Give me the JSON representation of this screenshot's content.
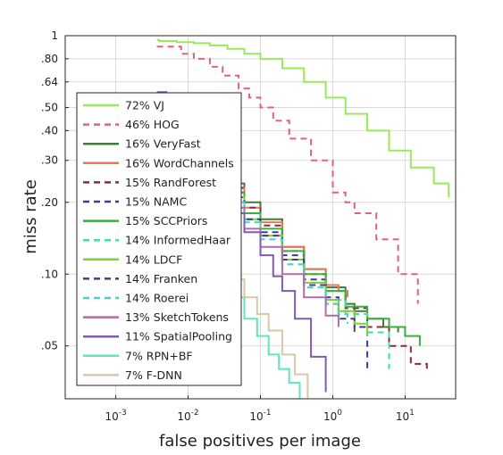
{
  "chart_data": {
    "type": "line",
    "xlabel": "false positives per image",
    "ylabel": "miss rate",
    "x_scale": "log",
    "y_scale": "log",
    "xlim": [
      0.0002,
      50
    ],
    "ylim": [
      0.03,
      1
    ],
    "x_ticks": [
      {
        "value": 0.001,
        "base": "10",
        "exp": "-3"
      },
      {
        "value": 0.01,
        "base": "10",
        "exp": "-2"
      },
      {
        "value": 0.1,
        "base": "10",
        "exp": "-1"
      },
      {
        "value": 1,
        "base": "10",
        "exp": "0"
      },
      {
        "value": 10,
        "base": "10",
        "exp": "1"
      }
    ],
    "y_ticks": [
      {
        "value": 1,
        "label": "1"
      },
      {
        "value": 0.8,
        "label": ".80"
      },
      {
        "value": 0.64,
        "label": ".64"
      },
      {
        "value": 0.5,
        "label": ".50"
      },
      {
        "value": 0.4,
        "label": ".40"
      },
      {
        "value": 0.3,
        "label": ".30"
      },
      {
        "value": 0.2,
        "label": ".20"
      },
      {
        "value": 0.1,
        "label": ".10"
      },
      {
        "value": 0.05,
        "label": ".05"
      }
    ],
    "grid": true,
    "legend_position": "left",
    "series": [
      {
        "name": "72% VJ",
        "color": "#9be95a",
        "dash": "solid",
        "x": [
          0.0037,
          0.004,
          0.007,
          0.012,
          0.02,
          0.035,
          0.06,
          0.1,
          0.2,
          0.4,
          0.8,
          1.5,
          3,
          6,
          12,
          25,
          40
        ],
        "y": [
          0.96,
          0.95,
          0.94,
          0.93,
          0.91,
          0.88,
          0.84,
          0.8,
          0.73,
          0.64,
          0.55,
          0.47,
          0.4,
          0.33,
          0.28,
          0.24,
          0.21
        ]
      },
      {
        "name": "46% HOG",
        "color": "#e06475",
        "dash": "dash",
        "x": [
          0.0037,
          0.005,
          0.008,
          0.012,
          0.02,
          0.03,
          0.05,
          0.07,
          0.1,
          0.15,
          0.25,
          0.5,
          1,
          1.5,
          2,
          4,
          8,
          15
        ],
        "y": [
          0.9,
          0.9,
          0.84,
          0.8,
          0.74,
          0.68,
          0.6,
          0.55,
          0.5,
          0.44,
          0.37,
          0.3,
          0.22,
          0.2,
          0.18,
          0.14,
          0.1,
          0.075
        ]
      },
      {
        "name": "16% VeryFast",
        "color": "#3f7a3f",
        "dash": "solid",
        "x": [
          0.0037,
          0.01,
          0.03,
          0.06,
          0.1,
          0.2,
          0.4,
          0.8,
          1.5,
          2,
          3,
          5,
          8
        ],
        "y": [
          0.5,
          0.33,
          0.24,
          0.2,
          0.17,
          0.13,
          0.105,
          0.088,
          0.075,
          0.07,
          0.065,
          0.06,
          0.057
        ]
      },
      {
        "name": "16% WordChannels",
        "color": "#e6795a",
        "dash": "solid",
        "x": [
          0.0037,
          0.01,
          0.03,
          0.06,
          0.1,
          0.2,
          0.4,
          0.8,
          1.2,
          1.6
        ],
        "y": [
          0.48,
          0.33,
          0.23,
          0.19,
          0.165,
          0.13,
          0.105,
          0.09,
          0.085,
          0.08
        ]
      },
      {
        "name": "15% RandForest",
        "color": "#8c2a3a",
        "dash": "dash",
        "x": [
          0.0037,
          0.01,
          0.03,
          0.06,
          0.1,
          0.2,
          0.4,
          0.8,
          1.5,
          3,
          6,
          12,
          20
        ],
        "y": [
          0.5,
          0.32,
          0.23,
          0.19,
          0.16,
          0.125,
          0.1,
          0.085,
          0.072,
          0.06,
          0.05,
          0.042,
          0.04
        ]
      },
      {
        "name": "15% NAMC",
        "color": "#3b3b9b",
        "dash": "dash",
        "x": [
          0.0037,
          0.01,
          0.03,
          0.06,
          0.1,
          0.2,
          0.4,
          0.8,
          1.2,
          2,
          3
        ],
        "y": [
          0.48,
          0.3,
          0.22,
          0.18,
          0.15,
          0.12,
          0.095,
          0.08,
          0.07,
          0.06,
          0.04
        ]
      },
      {
        "name": "15% SCCPriors",
        "color": "#3fae3f",
        "dash": "solid",
        "x": [
          0.0037,
          0.01,
          0.03,
          0.06,
          0.1,
          0.2,
          0.4,
          0.8,
          1.5,
          3,
          6,
          10,
          16
        ],
        "y": [
          0.48,
          0.3,
          0.22,
          0.18,
          0.155,
          0.125,
          0.1,
          0.085,
          0.073,
          0.065,
          0.06,
          0.055,
          0.05
        ]
      },
      {
        "name": "14% InformedHaar",
        "color": "#3de2a6",
        "dash": "dash",
        "x": [
          0.0037,
          0.01,
          0.03,
          0.06,
          0.1,
          0.2,
          0.4,
          0.8,
          1.5,
          3,
          6
        ],
        "y": [
          0.47,
          0.3,
          0.21,
          0.17,
          0.145,
          0.115,
          0.092,
          0.078,
          0.068,
          0.057,
          0.04
        ]
      },
      {
        "name": "14% LDCF",
        "color": "#7fcf3f",
        "dash": "solid",
        "x": [
          0.0037,
          0.01,
          0.03,
          0.06,
          0.1,
          0.2,
          0.4,
          0.8,
          1.2,
          2,
          3
        ],
        "y": [
          0.46,
          0.29,
          0.21,
          0.17,
          0.145,
          0.115,
          0.092,
          0.078,
          0.07,
          0.062,
          0.055
        ]
      },
      {
        "name": "14% Franken",
        "color": "#40407f",
        "dash": "dash",
        "x": [
          0.0037,
          0.01,
          0.03,
          0.06,
          0.1,
          0.2,
          0.4,
          0.8,
          1.2,
          2
        ],
        "y": [
          0.46,
          0.29,
          0.21,
          0.17,
          0.145,
          0.115,
          0.09,
          0.075,
          0.065,
          0.055
        ]
      },
      {
        "name": "14% Roerei",
        "color": "#3fd6cf",
        "dash": "dash",
        "x": [
          0.0037,
          0.01,
          0.03,
          0.06,
          0.1,
          0.2,
          0.4,
          0.8,
          1.2,
          1.6
        ],
        "y": [
          0.46,
          0.29,
          0.2,
          0.165,
          0.14,
          0.11,
          0.088,
          0.075,
          0.068,
          0.062
        ]
      },
      {
        "name": "13% SketchTokens",
        "color": "#b36aa6",
        "dash": "solid",
        "x": [
          0.0037,
          0.01,
          0.03,
          0.06,
          0.1,
          0.2,
          0.4,
          0.8,
          1.2
        ],
        "y": [
          0.45,
          0.28,
          0.19,
          0.155,
          0.13,
          0.1,
          0.08,
          0.067,
          0.06
        ]
      },
      {
        "name": "11% SpatialPooling",
        "color": "#7d5cb3",
        "dash": "solid",
        "x": [
          0.0037,
          0.005,
          0.01,
          0.02,
          0.04,
          0.06,
          0.1,
          0.15,
          0.2,
          0.3,
          0.5,
          0.8
        ],
        "y": [
          0.58,
          0.57,
          0.4,
          0.26,
          0.18,
          0.15,
          0.12,
          0.098,
          0.085,
          0.065,
          0.045,
          0.032
        ]
      },
      {
        "name": "7% RPN+BF",
        "color": "#5de8b8",
        "dash": "solid",
        "x": [
          0.0037,
          0.008,
          0.015,
          0.025,
          0.04,
          0.06,
          0.09,
          0.13,
          0.18,
          0.25,
          0.35
        ],
        "y": [
          0.32,
          0.22,
          0.15,
          0.11,
          0.08,
          0.065,
          0.055,
          0.046,
          0.04,
          0.035,
          0.03
        ]
      },
      {
        "name": "7% F-DNN",
        "color": "#d6c9a8",
        "dash": "solid",
        "x": [
          0.0037,
          0.008,
          0.015,
          0.025,
          0.04,
          0.06,
          0.09,
          0.13,
          0.2,
          0.3,
          0.45
        ],
        "y": [
          0.33,
          0.22,
          0.16,
          0.12,
          0.095,
          0.08,
          0.068,
          0.058,
          0.046,
          0.038,
          0.03
        ]
      }
    ]
  }
}
